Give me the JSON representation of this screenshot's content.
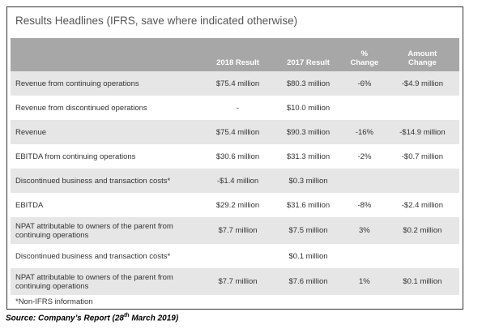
{
  "title": "Results Headlines (IFRS, save where indicated otherwise)",
  "table": {
    "header": [
      null,
      [
        "2018 Result"
      ],
      [
        "2017 Result"
      ],
      [
        "%",
        "Change"
      ],
      [
        "Amount",
        "Change"
      ]
    ],
    "rows": [
      [
        "Revenue from continuing operations",
        "$75.4 million",
        "$80.3 million",
        "-6%",
        "-$4.9 million"
      ],
      [
        "Revenue from discontinued operations",
        "-",
        "$10.0 million",
        null,
        null
      ],
      [
        "Revenue",
        "$75.4 million",
        "$90.3 million",
        "-16%",
        "-$14.9 million"
      ],
      [
        "EBITDA from continuing operations",
        "$30.6 million",
        "$31.3 million",
        "-2%",
        "-$0.7 million"
      ],
      [
        "Discontinued business and transaction costs*",
        "-$1.4 million",
        "$0.3 million",
        null,
        null
      ],
      [
        "EBITDA",
        "$29.2 million",
        "$31.6 million",
        "-8%",
        "-$2.4 million"
      ],
      [
        "NPAT attributable to owners of the parent from continuing operations",
        "$7.7 million",
        "$7.5 million",
        "3%",
        "$0.2 million"
      ],
      [
        "Discontinued business and transaction costs*",
        null,
        "$0.1 million",
        null,
        null
      ],
      [
        "NPAT attributable to owners of the parent from continuing operations",
        "$7.7 million",
        "$7.6 million",
        "1%",
        "$0.1 million"
      ]
    ]
  },
  "footnote": "*Non-IFRS information",
  "source": {
    "before": "Source: Company’s Report (28",
    "sup": "th",
    "after": " March 2019)"
  }
}
